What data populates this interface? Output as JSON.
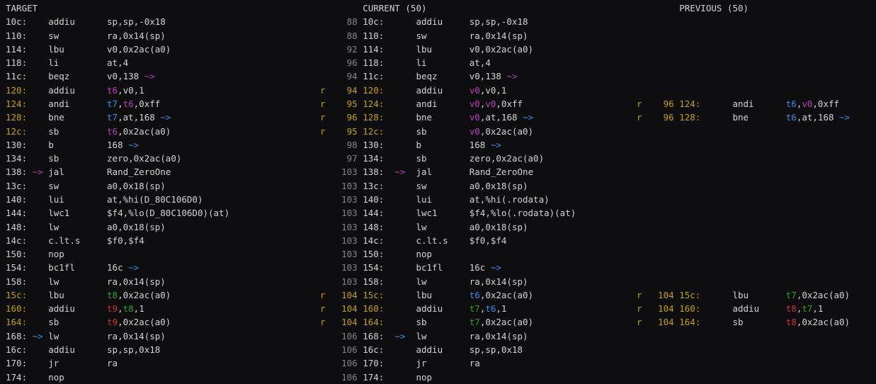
{
  "colors": {
    "fg": "#d4d4d4",
    "dim": "#858585",
    "y": "#c5a008",
    "m": "#bc3fbc",
    "b": "#3b8eea",
    "g": "#28a428",
    "r": "#cd3131"
  },
  "glyphs": {
    "branch_arrow": "~>"
  },
  "panes": {
    "target": {
      "header": "TARGET",
      "rows": [
        {
          "a": "10c:",
          "m": "addiu",
          "o": [
            [
              "sp,sp,-0x18"
            ]
          ]
        },
        {
          "a": "110:",
          "m": "sw",
          "o": [
            [
              "ra,0x14(sp)"
            ]
          ]
        },
        {
          "a": "114:",
          "m": "lbu",
          "o": [
            [
              "v0,0x2ac(a0)"
            ]
          ]
        },
        {
          "a": "118:",
          "m": "li",
          "o": [
            [
              "at,4"
            ]
          ]
        },
        {
          "a": "11c:",
          "m": "beqz",
          "o": [
            [
              "v0,138"
            ]
          ],
          "post": "m"
        },
        {
          "a": "120:",
          "ac": "y",
          "m": "addiu",
          "o": [
            [
              "t6",
              "m"
            ],
            [
              ",v0,1"
            ]
          ]
        },
        {
          "a": "124:",
          "ac": "y",
          "m": "andi",
          "o": [
            [
              "t7",
              "b"
            ],
            [
              ","
            ],
            [
              "t6",
              "m"
            ],
            [
              ",0xff"
            ]
          ]
        },
        {
          "a": "128:",
          "ac": "y",
          "m": "bne",
          "o": [
            [
              "t7",
              "b"
            ],
            [
              ",at,168"
            ]
          ],
          "post": "b"
        },
        {
          "a": "12c:",
          "ac": "y",
          "m": "sb",
          "o": [
            [
              "t6",
              "m"
            ],
            [
              ",0x2ac(a0)"
            ]
          ]
        },
        {
          "a": "130:",
          "m": "b",
          "o": [
            [
              "168"
            ]
          ],
          "post": "b"
        },
        {
          "a": "134:",
          "m": "sb",
          "o": [
            [
              "zero,0x2ac(a0)"
            ]
          ]
        },
        {
          "a": "138:",
          "pre": "m",
          "m": "jal",
          "o": [
            [
              "Rand_ZeroOne"
            ]
          ]
        },
        {
          "a": "13c:",
          "m": "sw",
          "o": [
            [
              "a0,0x18(sp)"
            ]
          ]
        },
        {
          "a": "140:",
          "m": "lui",
          "o": [
            [
              "at,%hi(D_80C106D0)"
            ]
          ]
        },
        {
          "a": "144:",
          "m": "lwc1",
          "o": [
            [
              "$f4,%lo(D_80C106D0)(at)"
            ]
          ]
        },
        {
          "a": "148:",
          "m": "lw",
          "o": [
            [
              "a0,0x18(sp)"
            ]
          ]
        },
        {
          "a": "14c:",
          "m": "c.lt.s",
          "o": [
            [
              "$f0,$f4"
            ]
          ]
        },
        {
          "a": "150:",
          "m": "nop",
          "o": []
        },
        {
          "a": "154:",
          "m": "bc1fl",
          "o": [
            [
              "16c"
            ]
          ],
          "post": "b"
        },
        {
          "a": "158:",
          "m": "lw",
          "o": [
            [
              "ra,0x14(sp)"
            ]
          ]
        },
        {
          "a": "15c:",
          "ac": "y",
          "m": "lbu",
          "o": [
            [
              "t8",
              "g"
            ],
            [
              ",0x2ac(a0)"
            ]
          ]
        },
        {
          "a": "160:",
          "ac": "y",
          "m": "addiu",
          "o": [
            [
              "t9",
              "r"
            ],
            [
              ","
            ],
            [
              "t8",
              "g"
            ],
            [
              ",1"
            ]
          ]
        },
        {
          "a": "164:",
          "ac": "y",
          "m": "sb",
          "o": [
            [
              "t9",
              "r"
            ],
            [
              ",0x2ac(a0)"
            ]
          ]
        },
        {
          "a": "168:",
          "pre": "b",
          "m": "lw",
          "o": [
            [
              "ra,0x14(sp)"
            ]
          ]
        },
        {
          "a": "16c:",
          "m": "addiu",
          "o": [
            [
              "sp,sp,0x18"
            ]
          ]
        },
        {
          "a": "170:",
          "m": "jr",
          "o": [
            [
              "ra"
            ]
          ]
        },
        {
          "a": "174:",
          "m": "nop",
          "o": []
        }
      ]
    },
    "current": {
      "header": "CURRENT (50)",
      "rows": [
        {
          "n": "88",
          "nc": "dim",
          "a": "10c:",
          "m": "addiu",
          "o": [
            [
              "sp,sp,-0x18"
            ]
          ]
        },
        {
          "n": "88",
          "nc": "dim",
          "a": "110:",
          "m": "sw",
          "o": [
            [
              "ra,0x14(sp)"
            ]
          ]
        },
        {
          "n": "92",
          "nc": "dim",
          "a": "114:",
          "m": "lbu",
          "o": [
            [
              "v0,0x2ac(a0)"
            ]
          ]
        },
        {
          "n": "96",
          "nc": "dim",
          "a": "118:",
          "m": "li",
          "o": [
            [
              "at,4"
            ]
          ]
        },
        {
          "n": "94",
          "nc": "dim",
          "a": "11c:",
          "m": "beqz",
          "o": [
            [
              "v0,138"
            ]
          ],
          "post": "m"
        },
        {
          "f": "r",
          "n": "94",
          "nc": "y",
          "a": "120:",
          "ac": "y",
          "m": "addiu",
          "o": [
            [
              "v0",
              "m"
            ],
            [
              ",v0,1"
            ]
          ]
        },
        {
          "f": "r",
          "n": "95",
          "nc": "y",
          "a": "124:",
          "ac": "y",
          "m": "andi",
          "o": [
            [
              "v0",
              "m"
            ],
            [
              ","
            ],
            [
              "v0",
              "m"
            ],
            [
              ",0xff"
            ]
          ]
        },
        {
          "f": "r",
          "n": "96",
          "nc": "y",
          "a": "128:",
          "ac": "y",
          "m": "bne",
          "o": [
            [
              "v0",
              "m"
            ],
            [
              ",at,168"
            ]
          ],
          "post": "b"
        },
        {
          "f": "r",
          "n": "95",
          "nc": "y",
          "a": "12c:",
          "ac": "y",
          "m": "sb",
          "o": [
            [
              "v0",
              "m"
            ],
            [
              ",0x2ac(a0)"
            ]
          ]
        },
        {
          "n": "98",
          "nc": "dim",
          "a": "130:",
          "m": "b",
          "o": [
            [
              "168"
            ]
          ],
          "post": "b"
        },
        {
          "n": "97",
          "nc": "dim",
          "a": "134:",
          "m": "sb",
          "o": [
            [
              "zero,0x2ac(a0)"
            ]
          ]
        },
        {
          "n": "103",
          "nc": "dim",
          "a": "138:",
          "pre": "m",
          "m": "jal",
          "o": [
            [
              "Rand_ZeroOne"
            ]
          ]
        },
        {
          "n": "103",
          "nc": "dim",
          "a": "13c:",
          "m": "sw",
          "o": [
            [
              "a0,0x18(sp)"
            ]
          ]
        },
        {
          "n": "103",
          "nc": "dim",
          "a": "140:",
          "m": "lui",
          "o": [
            [
              "at,%hi(.rodata)"
            ]
          ]
        },
        {
          "n": "103",
          "nc": "dim",
          "a": "144:",
          "m": "lwc1",
          "o": [
            [
              "$f4,%lo(.rodata)(at)"
            ]
          ]
        },
        {
          "n": "103",
          "nc": "dim",
          "a": "148:",
          "m": "lw",
          "o": [
            [
              "a0,0x18(sp)"
            ]
          ]
        },
        {
          "n": "103",
          "nc": "dim",
          "a": "14c:",
          "m": "c.lt.s",
          "o": [
            [
              "$f0,$f4"
            ]
          ]
        },
        {
          "n": "103",
          "nc": "dim",
          "a": "150:",
          "m": "nop",
          "o": []
        },
        {
          "n": "103",
          "nc": "dim",
          "a": "154:",
          "m": "bc1fl",
          "o": [
            [
              "16c"
            ]
          ],
          "post": "b"
        },
        {
          "n": "103",
          "nc": "dim",
          "a": "158:",
          "m": "lw",
          "o": [
            [
              "ra,0x14(sp)"
            ]
          ]
        },
        {
          "f": "r",
          "n": "104",
          "nc": "y",
          "a": "15c:",
          "ac": "y",
          "m": "lbu",
          "o": [
            [
              "t6",
              "b"
            ],
            [
              ",0x2ac(a0)"
            ]
          ]
        },
        {
          "f": "r",
          "n": "104",
          "nc": "y",
          "a": "160:",
          "ac": "y",
          "m": "addiu",
          "o": [
            [
              "t7",
              "g"
            ],
            [
              ","
            ],
            [
              "t6",
              "b"
            ],
            [
              ",1"
            ]
          ]
        },
        {
          "f": "r",
          "n": "104",
          "nc": "y",
          "a": "164:",
          "ac": "y",
          "m": "sb",
          "o": [
            [
              "t7",
              "g"
            ],
            [
              ",0x2ac(a0)"
            ]
          ]
        },
        {
          "n": "106",
          "nc": "dim",
          "a": "168:",
          "pre": "b",
          "m": "lw",
          "o": [
            [
              "ra,0x14(sp)"
            ]
          ]
        },
        {
          "n": "106",
          "nc": "dim",
          "a": "16c:",
          "m": "addiu",
          "o": [
            [
              "sp,sp,0x18"
            ]
          ]
        },
        {
          "n": "106",
          "nc": "dim",
          "a": "170:",
          "m": "jr",
          "o": [
            [
              "ra"
            ]
          ]
        },
        {
          "n": "106",
          "nc": "dim",
          "a": "174:",
          "m": "nop",
          "o": []
        }
      ]
    },
    "previous": {
      "header": "PREVIOUS (50)",
      "rows": [
        null,
        null,
        null,
        null,
        null,
        null,
        {
          "f": "r",
          "n": "96",
          "nc": "y",
          "a": "124:",
          "ac": "y",
          "m": "andi",
          "o": [
            [
              "t6",
              "b"
            ],
            [
              ","
            ],
            [
              "v0",
              "m"
            ],
            [
              ",0xff"
            ]
          ]
        },
        {
          "f": "r",
          "n": "96",
          "nc": "y",
          "a": "128:",
          "ac": "y",
          "m": "bne",
          "o": [
            [
              "t6",
              "b"
            ],
            [
              ",at,168"
            ]
          ],
          "post": "b"
        },
        null,
        null,
        null,
        null,
        null,
        null,
        null,
        null,
        null,
        null,
        null,
        null,
        {
          "f": "r",
          "n": "104",
          "nc": "y",
          "a": "15c:",
          "ac": "y",
          "m": "lbu",
          "o": [
            [
              "t7",
              "g"
            ],
            [
              ",0x2ac(a0)"
            ]
          ]
        },
        {
          "f": "r",
          "n": "104",
          "nc": "y",
          "a": "160:",
          "ac": "y",
          "m": "addiu",
          "o": [
            [
              "t8",
              "r"
            ],
            [
              ","
            ],
            [
              "t7",
              "g"
            ],
            [
              ",1"
            ]
          ]
        },
        {
          "f": "r",
          "n": "104",
          "nc": "y",
          "a": "164:",
          "ac": "y",
          "m": "sb",
          "o": [
            [
              "t8",
              "r"
            ],
            [
              ",0x2ac(a0)"
            ]
          ]
        },
        null,
        null,
        null,
        null
      ]
    }
  }
}
